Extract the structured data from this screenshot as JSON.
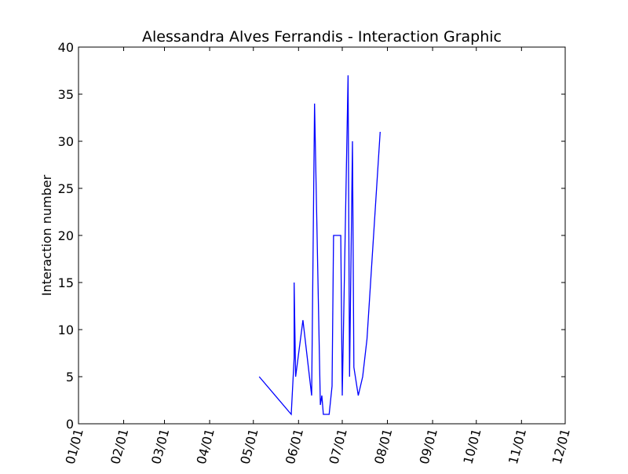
{
  "chart_data": {
    "type": "line",
    "title": "Alessandra Alves Ferrandis - Interaction Graphic",
    "xlabel": "",
    "ylabel": "Interaction number",
    "x_tick_labels": [
      "01/01",
      "02/01",
      "03/01",
      "04/01",
      "05/01",
      "06/01",
      "07/01",
      "08/01",
      "09/01",
      "10/01",
      "11/01",
      "12/01"
    ],
    "x_tick_day_of_year": [
      0,
      31,
      59,
      90,
      120,
      151,
      181,
      212,
      243,
      273,
      304,
      334
    ],
    "xlim_day_of_year": [
      0,
      334
    ],
    "y_tick_labels": [
      "0",
      "5",
      "10",
      "15",
      "20",
      "25",
      "30",
      "35",
      "40"
    ],
    "ylim": [
      0,
      40
    ],
    "grid": false,
    "legend": "none",
    "line_color": "#0000ff",
    "series": [
      {
        "name": "",
        "points": [
          {
            "date": "05/05",
            "value": 5
          },
          {
            "date": "05/27",
            "value": 1
          },
          {
            "date": "05/29",
            "value": 7
          },
          {
            "date": "05/29",
            "value": 15
          },
          {
            "date": "05/30",
            "value": 5
          },
          {
            "date": "06/04",
            "value": 11
          },
          {
            "date": "06/10",
            "value": 3
          },
          {
            "date": "06/12",
            "value": 34
          },
          {
            "date": "06/16",
            "value": 2
          },
          {
            "date": "06/17",
            "value": 3
          },
          {
            "date": "06/18",
            "value": 1
          },
          {
            "date": "06/22",
            "value": 1
          },
          {
            "date": "06/24",
            "value": 4
          },
          {
            "date": "06/25",
            "value": 20
          },
          {
            "date": "06/30",
            "value": 20
          },
          {
            "date": "07/01",
            "value": 3
          },
          {
            "date": "07/05",
            "value": 37
          },
          {
            "date": "07/06",
            "value": 5
          },
          {
            "date": "07/08",
            "value": 30
          },
          {
            "date": "07/09",
            "value": 6
          },
          {
            "date": "07/12",
            "value": 3
          },
          {
            "date": "07/15",
            "value": 5
          },
          {
            "date": "07/18",
            "value": 9
          },
          {
            "date": "07/27",
            "value": 31
          }
        ]
      }
    ]
  }
}
